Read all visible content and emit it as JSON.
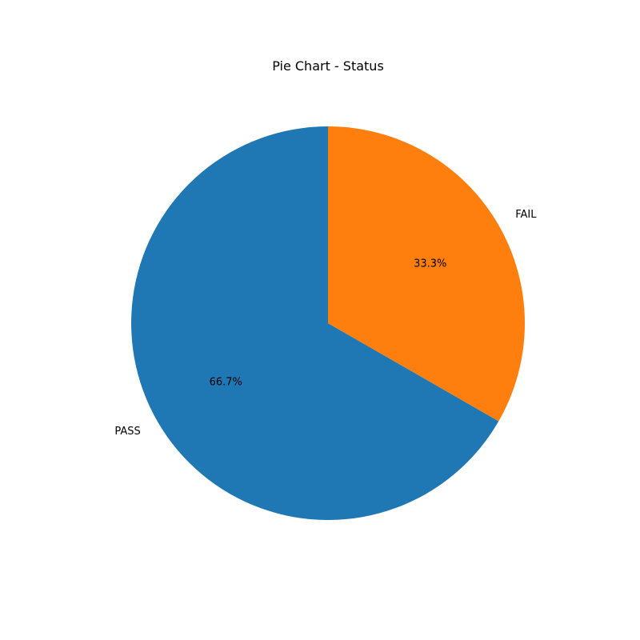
{
  "chart_data": {
    "type": "pie",
    "title": "Pie Chart - Status",
    "slices": [
      {
        "label": "PASS",
        "value": 66.7,
        "pct_label": "66.7%",
        "color": "#1f77b4"
      },
      {
        "label": "FAIL",
        "value": 33.3,
        "pct_label": "33.3%",
        "color": "#ff7f0e"
      }
    ],
    "start_angle_deg": 90,
    "direction": "counterclockwise",
    "legend": "none"
  }
}
